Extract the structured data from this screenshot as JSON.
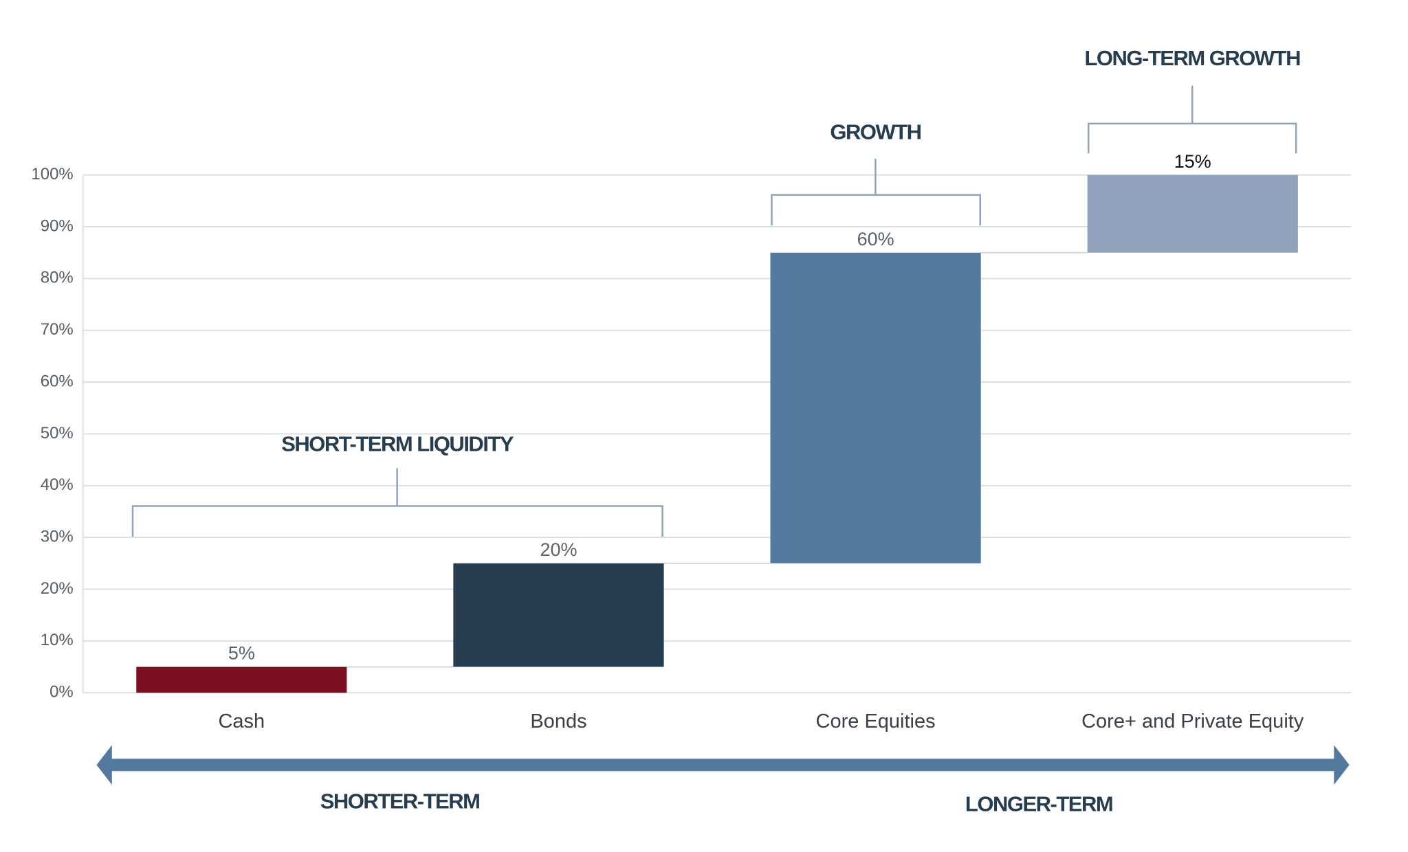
{
  "chart_data": {
    "type": "waterfall",
    "categories": [
      "Cash",
      "Bonds",
      "Core Equities",
      "Core+ and Private Equity"
    ],
    "values": [
      5,
      20,
      60,
      15
    ],
    "value_labels": [
      "5%",
      "20%",
      "60%",
      "15%"
    ],
    "colors": [
      "#7a1022",
      "#263c4f",
      "#537a9e",
      "#8fa3bc"
    ],
    "ylim": [
      0,
      100
    ],
    "yticks": [
      {
        "value": 0,
        "label": "0%"
      },
      {
        "value": 10,
        "label": "10%"
      },
      {
        "value": 20,
        "label": "20%"
      },
      {
        "value": 30,
        "label": "30%"
      },
      {
        "value": 40,
        "label": "40%"
      },
      {
        "value": 50,
        "label": "50%"
      },
      {
        "value": 60,
        "label": "60%"
      },
      {
        "value": 70,
        "label": "70%"
      },
      {
        "value": 80,
        "label": "80%"
      },
      {
        "value": 90,
        "label": "90%"
      },
      {
        "value": 100,
        "label": "100%"
      }
    ],
    "grid": true,
    "annotations": [
      "SHORT-TERM LIQUIDITY",
      "GROWTH",
      "LONG-TERM GROWTH"
    ],
    "arrow_labels": [
      "SHORTER-TERM",
      "LONGER-TERM"
    ]
  }
}
